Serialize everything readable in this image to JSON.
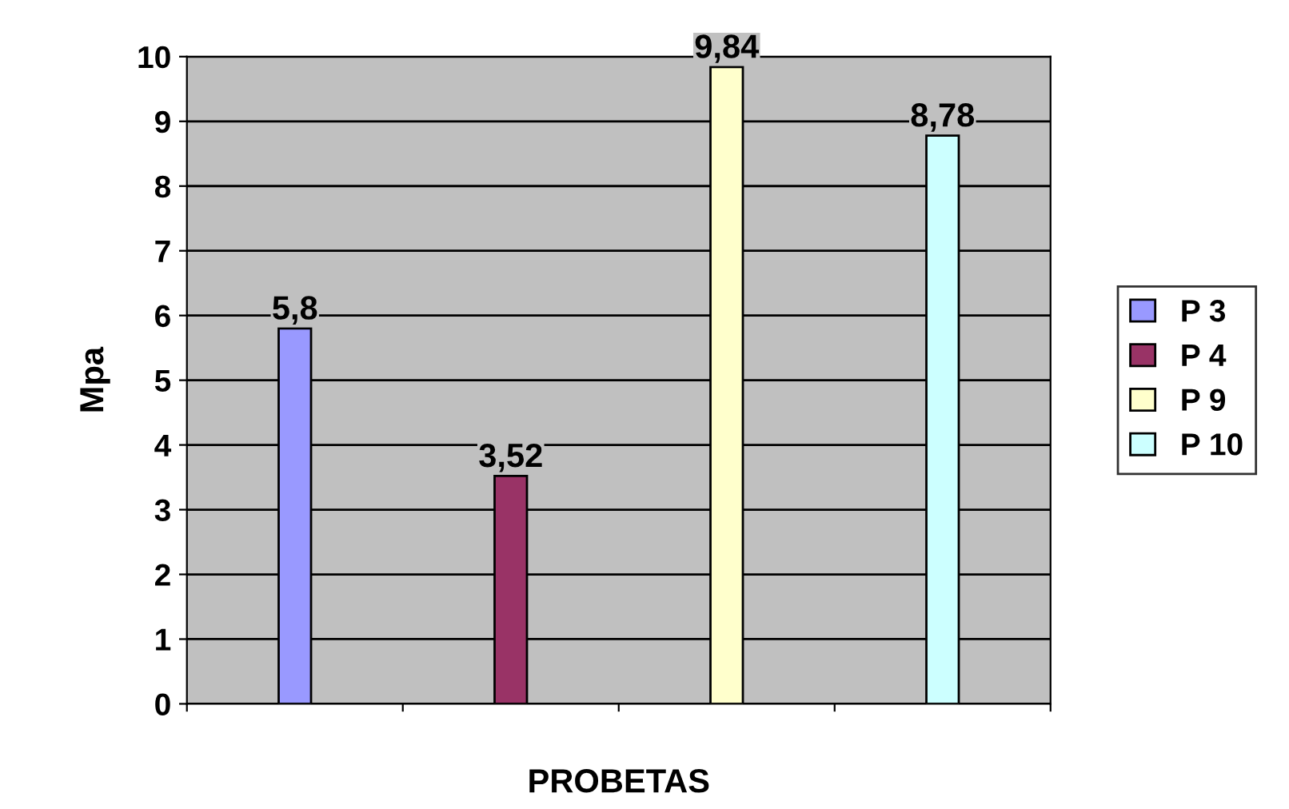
{
  "chart_data": {
    "type": "bar",
    "xlabel": "PROBETAS",
    "ylabel": "Mpa",
    "categories": [
      null,
      null,
      null,
      null
    ],
    "series": [
      {
        "name": "P 3",
        "color": "#9999ff",
        "values": [
          5.8,
          null,
          null,
          null
        ],
        "value_labels": [
          "5,8",
          null,
          null,
          null
        ]
      },
      {
        "name": "P 4",
        "color": "#993366",
        "values": [
          null,
          3.52,
          null,
          null
        ],
        "value_labels": [
          null,
          "3,52",
          null,
          null
        ]
      },
      {
        "name": "P 9",
        "color": "#ffffcc",
        "values": [
          null,
          null,
          9.84,
          null
        ],
        "value_labels": [
          null,
          null,
          "9,84",
          null
        ]
      },
      {
        "name": "P 10",
        "color": "#ccffff",
        "values": [
          null,
          null,
          null,
          8.78
        ],
        "value_labels": [
          null,
          null,
          null,
          "8,78"
        ]
      }
    ],
    "ylim": [
      0,
      10
    ],
    "yticks": [
      0,
      1,
      2,
      3,
      4,
      5,
      6,
      7,
      8,
      9,
      10
    ],
    "grid": "y",
    "legend": "right"
  }
}
